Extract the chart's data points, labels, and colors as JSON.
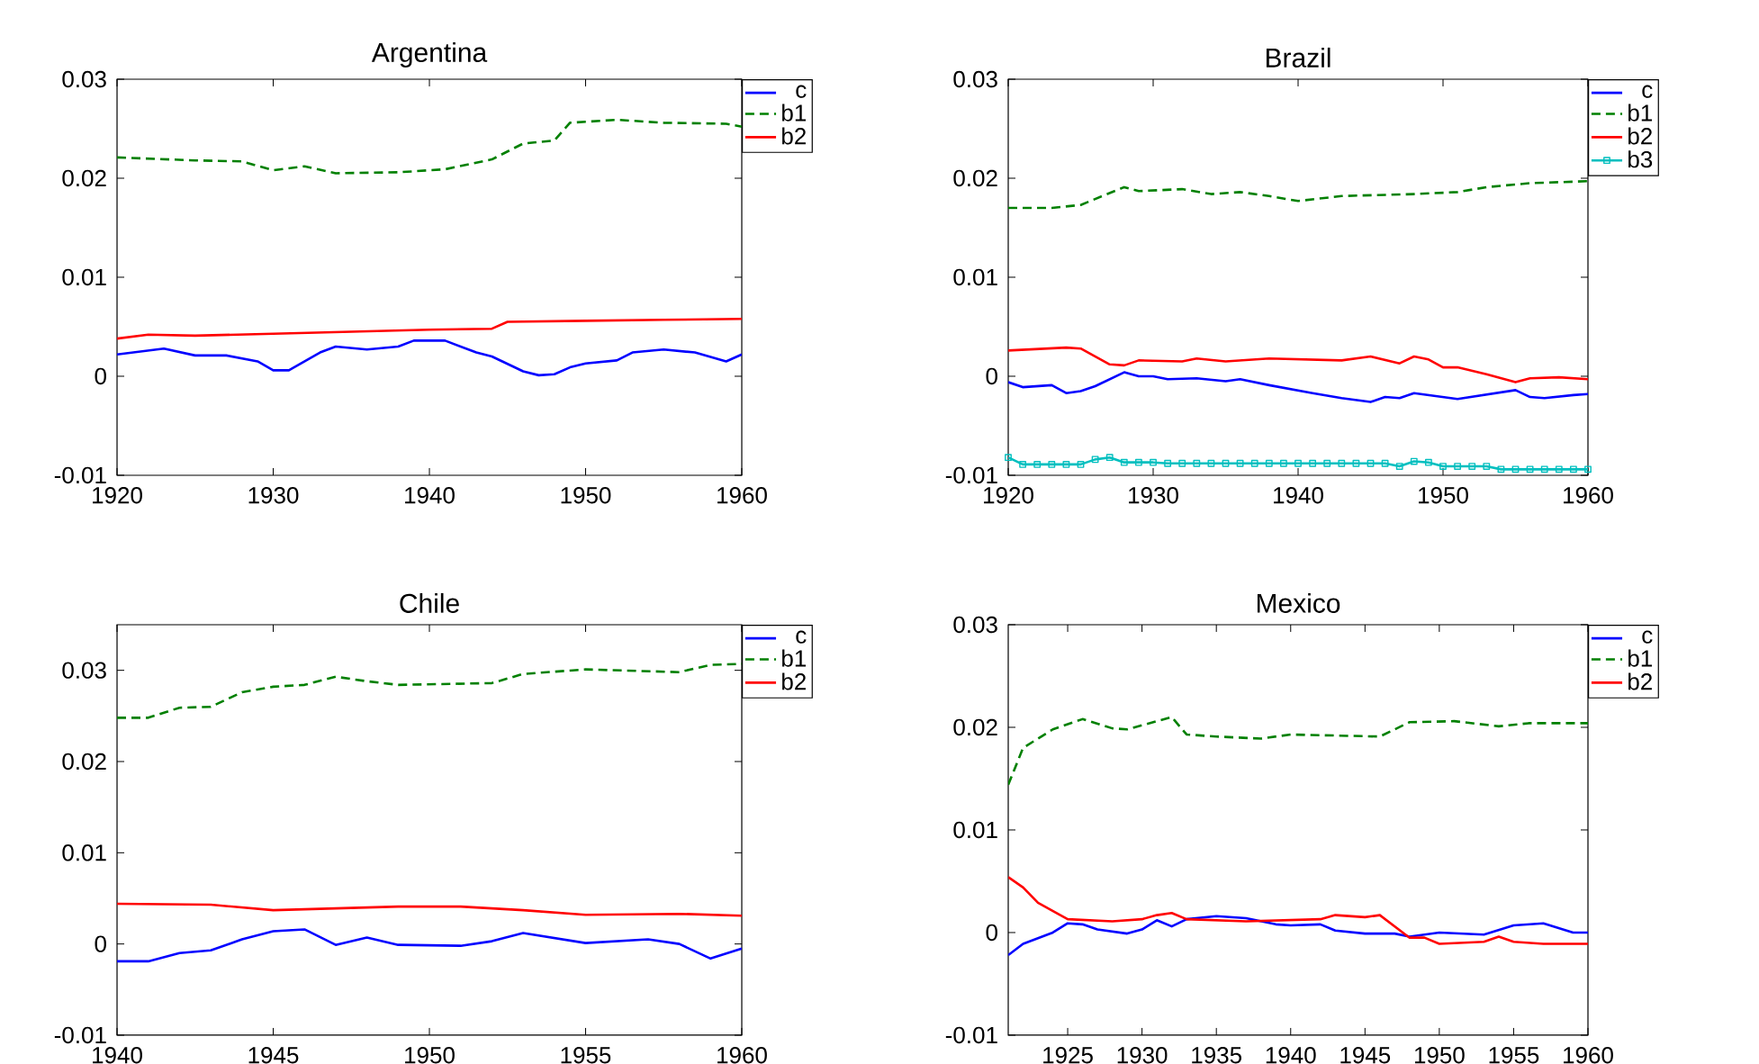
{
  "chart_data": [
    {
      "type": "line",
      "title": "Argentina",
      "xlim": [
        1920,
        1960
      ],
      "xticks": [
        1920,
        1930,
        1940,
        1950,
        1960
      ],
      "ylim": [
        -0.01,
        0.03
      ],
      "yticks": [
        -0.01,
        0,
        0.01,
        0.02,
        0.03
      ],
      "legend": "top right",
      "series": [
        {
          "name": "c",
          "color": "#0000ff",
          "line_style": "solid",
          "x": [
            1920,
            1923,
            1925,
            1927,
            1929,
            1930,
            1931,
            1933,
            1934,
            1936,
            1938,
            1939,
            1941,
            1943,
            1944,
            1946,
            1947,
            1948,
            1949,
            1950,
            1952,
            1953,
            1955,
            1957,
            1959,
            1960
          ],
          "values": [
            0.0022,
            0.0028,
            0.0021,
            0.0021,
            0.0015,
            0.0006,
            0.0006,
            0.0024,
            0.003,
            0.0027,
            0.003,
            0.0036,
            0.0036,
            0.0024,
            0.002,
            0.0005,
            0.0001,
            0.0002,
            0.0009,
            0.0013,
            0.0016,
            0.0024,
            0.0027,
            0.0024,
            0.0015,
            0.0022
          ]
        },
        {
          "name": "b1",
          "color": "#008000",
          "line_style": "dashed",
          "x": [
            1920,
            1925,
            1928,
            1930,
            1932,
            1934,
            1938,
            1941,
            1944,
            1946,
            1948,
            1949,
            1952,
            1955,
            1959,
            1960
          ],
          "values": [
            0.0221,
            0.0218,
            0.0217,
            0.0208,
            0.0212,
            0.0205,
            0.0206,
            0.0209,
            0.0219,
            0.0235,
            0.0238,
            0.0256,
            0.0259,
            0.0256,
            0.0255,
            0.0252
          ]
        },
        {
          "name": "b2",
          "color": "#ff0000",
          "line_style": "solid",
          "x": [
            1920,
            1922,
            1925,
            1930,
            1935,
            1940,
            1944,
            1945,
            1950,
            1955,
            1960
          ],
          "values": [
            0.0038,
            0.0042,
            0.0041,
            0.0043,
            0.0045,
            0.0047,
            0.0048,
            0.0055,
            0.0056,
            0.0057,
            0.0058
          ]
        }
      ]
    },
    {
      "type": "line",
      "title": "Brazil",
      "xlim": [
        1920,
        1960
      ],
      "xticks": [
        1920,
        1930,
        1940,
        1950,
        1960
      ],
      "ylim": [
        -0.01,
        0.03
      ],
      "yticks": [
        -0.01,
        0,
        0.01,
        0.02,
        0.03
      ],
      "legend": "top right",
      "series": [
        {
          "name": "c",
          "color": "#0000ff",
          "line_style": "solid",
          "x": [
            1920,
            1921,
            1923,
            1924,
            1925,
            1926,
            1928,
            1929,
            1930,
            1931,
            1933,
            1935,
            1936,
            1938,
            1941,
            1943,
            1945,
            1946,
            1947,
            1948,
            1951,
            1955,
            1956,
            1957,
            1959,
            1960
          ],
          "values": [
            -0.0006,
            -0.0011,
            -0.0009,
            -0.0017,
            -0.0015,
            -0.001,
            0.0004,
            0,
            0,
            -0.0003,
            -0.0002,
            -0.0005,
            -0.0003,
            -0.0009,
            -0.0017,
            -0.0022,
            -0.0026,
            -0.0021,
            -0.0022,
            -0.0017,
            -0.0023,
            -0.0014,
            -0.0021,
            -0.0022,
            -0.0019,
            -0.0018
          ]
        },
        {
          "name": "b1",
          "color": "#008000",
          "line_style": "dashed",
          "x": [
            1920,
            1923,
            1925,
            1928,
            1929,
            1932,
            1934,
            1936,
            1938,
            1940,
            1943,
            1948,
            1951,
            1953,
            1956,
            1960
          ],
          "values": [
            0.017,
            0.017,
            0.0173,
            0.0191,
            0.0187,
            0.0189,
            0.0184,
            0.0186,
            0.0182,
            0.0177,
            0.0182,
            0.0184,
            0.0186,
            0.0191,
            0.0195,
            0.0197
          ]
        },
        {
          "name": "b2",
          "color": "#ff0000",
          "line_style": "solid",
          "x": [
            1920,
            1924,
            1925,
            1927,
            1928,
            1929,
            1932,
            1933,
            1935,
            1938,
            1943,
            1945,
            1947,
            1948,
            1949,
            1950,
            1951,
            1953,
            1955,
            1956,
            1958,
            1960
          ],
          "values": [
            0.0026,
            0.0029,
            0.0028,
            0.0012,
            0.0011,
            0.0016,
            0.0015,
            0.0018,
            0.0015,
            0.0018,
            0.0016,
            0.002,
            0.0013,
            0.002,
            0.0017,
            0.0009,
            0.0009,
            0.0002,
            -0.0006,
            -0.0002,
            -0.0001,
            -0.0003
          ]
        },
        {
          "name": "b3",
          "color": "#00bfbf",
          "line_style": "solid",
          "marker": "square",
          "x": [
            1920,
            1921,
            1922,
            1923,
            1924,
            1925,
            1926,
            1927,
            1928,
            1929,
            1930,
            1931,
            1932,
            1933,
            1934,
            1935,
            1936,
            1937,
            1938,
            1939,
            1940,
            1941,
            1942,
            1943,
            1944,
            1945,
            1946,
            1947,
            1948,
            1949,
            1950,
            1951,
            1952,
            1953,
            1954,
            1955,
            1956,
            1957,
            1958,
            1959,
            1960
          ],
          "values": [
            -0.0082,
            -0.0089,
            -0.0089,
            -0.0089,
            -0.0089,
            -0.0089,
            -0.0084,
            -0.0082,
            -0.0087,
            -0.0087,
            -0.0087,
            -0.0088,
            -0.0088,
            -0.0088,
            -0.0088,
            -0.0088,
            -0.0088,
            -0.0088,
            -0.0088,
            -0.0088,
            -0.0088,
            -0.0088,
            -0.0088,
            -0.0088,
            -0.0088,
            -0.0088,
            -0.0088,
            -0.0091,
            -0.0086,
            -0.0087,
            -0.0091,
            -0.0091,
            -0.0091,
            -0.0091,
            -0.0094,
            -0.0094,
            -0.0094,
            -0.0094,
            -0.0094,
            -0.0094,
            -0.0094
          ]
        }
      ]
    },
    {
      "type": "line",
      "title": "Chile",
      "xlim": [
        1940,
        1960
      ],
      "xticks": [
        1940,
        1945,
        1950,
        1955,
        1960
      ],
      "ylim": [
        -0.01,
        0.035
      ],
      "yticks": [
        -0.01,
        0,
        0.01,
        0.02,
        0.03
      ],
      "legend": "top right",
      "series": [
        {
          "name": "c",
          "color": "#0000ff",
          "line_style": "solid",
          "x": [
            1940,
            1941,
            1942,
            1943,
            1944,
            1945,
            1946,
            1947,
            1948,
            1949,
            1951,
            1952,
            1953,
            1955,
            1957,
            1958,
            1959,
            1960
          ],
          "values": [
            -0.0019,
            -0.0019,
            -0.001,
            -0.0007,
            0.0005,
            0.0014,
            0.0016,
            -0.0001,
            0.0007,
            -0.0001,
            -0.0002,
            0.0003,
            0.0012,
            0.0001,
            0.0005,
            0,
            -0.0016,
            -0.0005
          ]
        },
        {
          "name": "b1",
          "color": "#008000",
          "line_style": "dashed",
          "x": [
            1940,
            1941,
            1942,
            1943,
            1944,
            1945,
            1946,
            1947,
            1948,
            1949,
            1952,
            1953,
            1955,
            1958,
            1959,
            1960
          ],
          "values": [
            0.0248,
            0.0248,
            0.0259,
            0.026,
            0.0276,
            0.0282,
            0.0284,
            0.0293,
            0.0288,
            0.0284,
            0.0286,
            0.0296,
            0.0301,
            0.0298,
            0.0306,
            0.0307
          ]
        },
        {
          "name": "b2",
          "color": "#ff0000",
          "line_style": "solid",
          "x": [
            1940,
            1943,
            1945,
            1947,
            1949,
            1951,
            1953,
            1955,
            1958,
            1960
          ],
          "values": [
            0.0044,
            0.0043,
            0.0037,
            0.0039,
            0.0041,
            0.0041,
            0.0037,
            0.0032,
            0.0033,
            0.0031
          ]
        }
      ]
    },
    {
      "type": "line",
      "title": "Mexico",
      "xlim": [
        1921,
        1960
      ],
      "xticks": [
        1925,
        1930,
        1935,
        1940,
        1945,
        1950,
        1955,
        1960
      ],
      "ylim": [
        -0.01,
        0.03
      ],
      "yticks": [
        -0.01,
        0,
        0.01,
        0.02,
        0.03
      ],
      "legend": "top right",
      "series": [
        {
          "name": "c",
          "color": "#0000ff",
          "line_style": "solid",
          "x": [
            1921,
            1922,
            1924,
            1925,
            1926,
            1927,
            1929,
            1930,
            1931,
            1932,
            1933,
            1935,
            1937,
            1939,
            1940,
            1942,
            1943,
            1945,
            1947,
            1948,
            1950,
            1953,
            1955,
            1957,
            1959,
            1960
          ],
          "values": [
            -0.0022,
            -0.0011,
            0,
            0.0009,
            0.0008,
            0.0003,
            -0.0001,
            0.0003,
            0.0012,
            0.0006,
            0.0013,
            0.0016,
            0.0014,
            0.0008,
            0.0007,
            0.0008,
            0.0002,
            -0.0001,
            -0.0001,
            -0.0004,
            0,
            -0.0002,
            0.0007,
            0.0009,
            0,
            0
          ]
        },
        {
          "name": "b1",
          "color": "#008000",
          "line_style": "dashed",
          "x": [
            1921,
            1922,
            1924,
            1926,
            1928,
            1929,
            1932,
            1933,
            1935,
            1938,
            1940,
            1946,
            1948,
            1951,
            1954,
            1956,
            1960
          ],
          "values": [
            0.0144,
            0.018,
            0.0198,
            0.0208,
            0.0199,
            0.0198,
            0.021,
            0.0193,
            0.0191,
            0.0189,
            0.0193,
            0.0191,
            0.0205,
            0.0206,
            0.0201,
            0.0204,
            0.0204
          ]
        },
        {
          "name": "b2",
          "color": "#ff0000",
          "line_style": "solid",
          "x": [
            1921,
            1922,
            1923,
            1925,
            1928,
            1930,
            1931,
            1932,
            1933,
            1937,
            1942,
            1943,
            1945,
            1946,
            1948,
            1949,
            1950,
            1953,
            1954,
            1955,
            1957,
            1960
          ],
          "values": [
            0.0054,
            0.0044,
            0.0029,
            0.0013,
            0.0011,
            0.0013,
            0.0017,
            0.0019,
            0.0013,
            0.0011,
            0.0013,
            0.0017,
            0.0015,
            0.0017,
            -0.0005,
            -0.0005,
            -0.0011,
            -0.0009,
            -0.0004,
            -0.0009,
            -0.0011,
            -0.0011
          ]
        }
      ]
    }
  ]
}
